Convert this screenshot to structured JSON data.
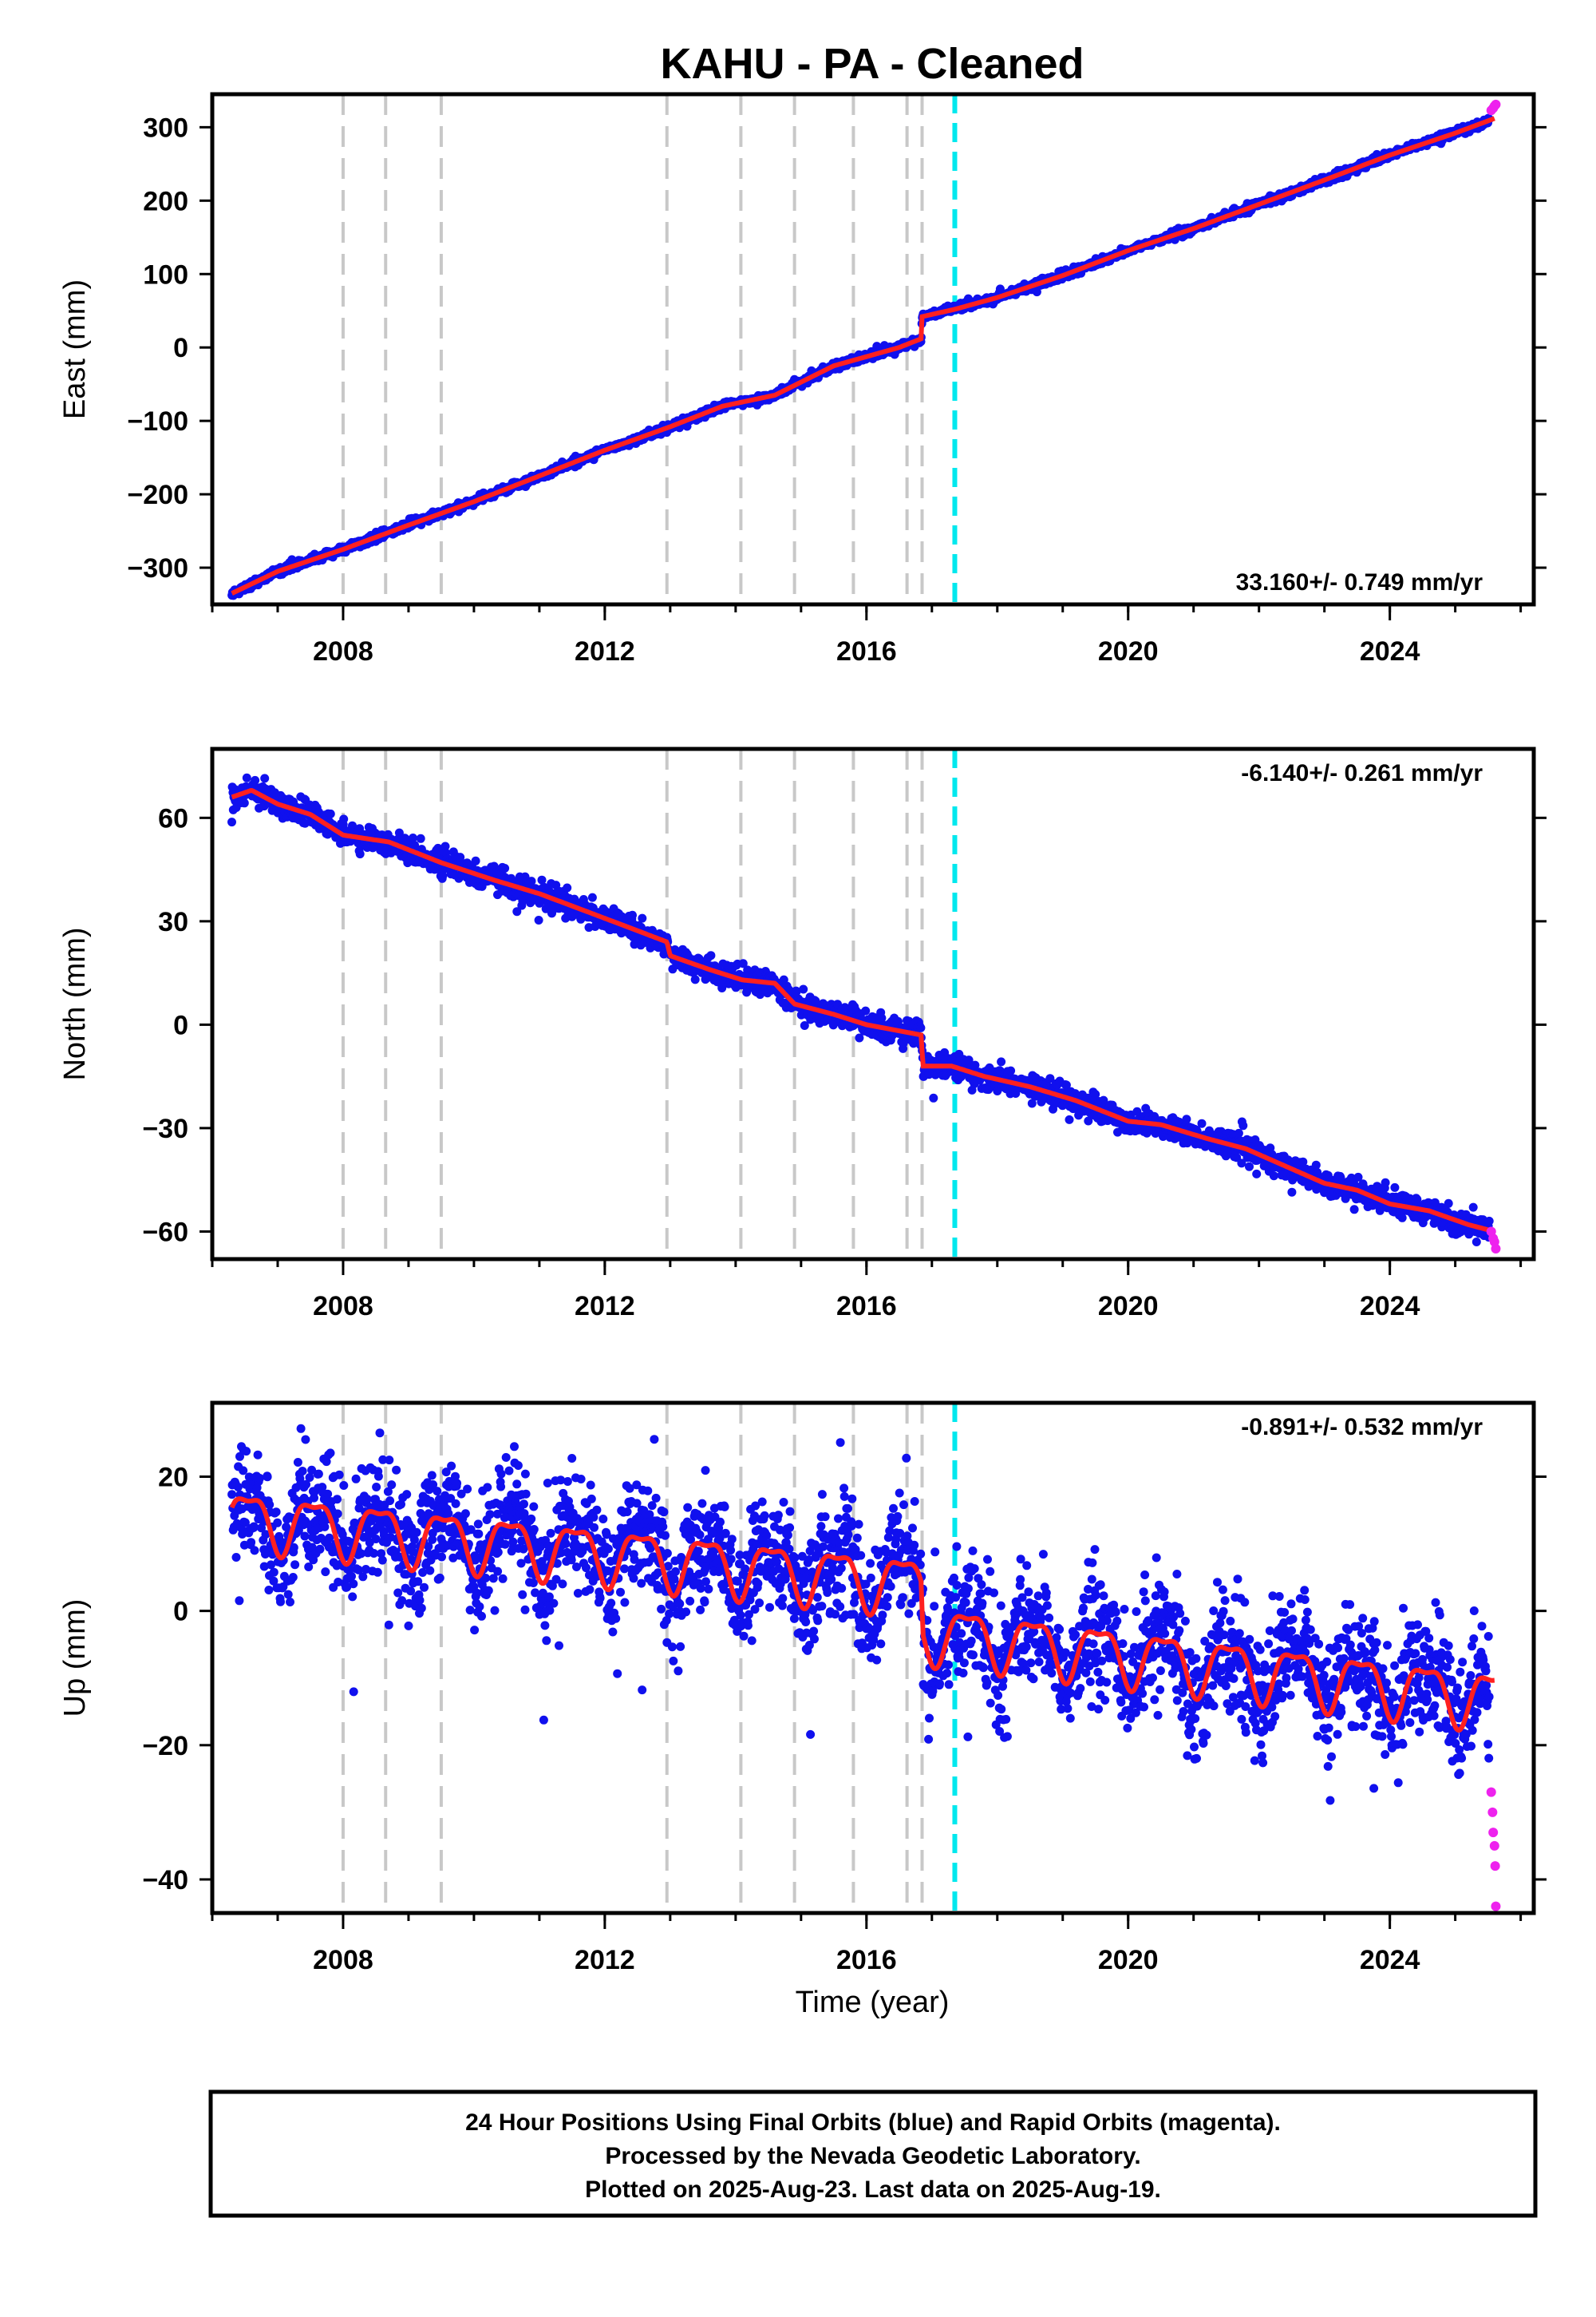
{
  "chart_data": {
    "title": "KAHU  - PA - Cleaned",
    "xlabel": "Time (year)",
    "x_ticks": [
      2008,
      2012,
      2016,
      2020,
      2024
    ],
    "xlim": [
      2006.0,
      2026.2
    ],
    "colors": {
      "final": "#1010ee",
      "rapid": "#ee22ee",
      "fit": "#ff2020",
      "event": "#c8c8c8",
      "equipment_change": "#00e8ee"
    },
    "event_lines": [
      2008.0,
      2008.65,
      2009.5,
      2012.95,
      2014.08,
      2014.9,
      2015.8,
      2016.62,
      2016.85
    ],
    "equipment_change": 2017.35,
    "panels": [
      {
        "type": "scatter",
        "ylabel": "East (mm)",
        "ylim": [
          -350,
          345
        ],
        "y_ticks": [
          -300,
          -200,
          -100,
          0,
          100,
          200,
          300
        ],
        "rate_label": "33.160+/- 0.749 mm/yr",
        "rate_position": "bottom-right",
        "fit": [
          [
            2006.3,
            -335
          ],
          [
            2007,
            -305
          ],
          [
            2008,
            -275
          ],
          [
            2009,
            -242
          ],
          [
            2010,
            -210
          ],
          [
            2011,
            -175
          ],
          [
            2012,
            -140
          ],
          [
            2013,
            -108
          ],
          [
            2013.8,
            -80
          ],
          [
            2014.6,
            -65
          ],
          [
            2015.5,
            -25
          ],
          [
            2016.5,
            0
          ],
          [
            2016.84,
            12
          ],
          [
            2016.85,
            42
          ],
          [
            2017.35,
            52
          ],
          [
            2018,
            68
          ],
          [
            2019,
            98
          ],
          [
            2020,
            132
          ],
          [
            2021,
            162
          ],
          [
            2022,
            195
          ],
          [
            2023,
            228
          ],
          [
            2024,
            262
          ],
          [
            2025,
            292
          ],
          [
            2025.6,
            312
          ]
        ],
        "final_count": 2600,
        "scatter_noise": 2.5,
        "rapid": [
          [
            2025.55,
            323
          ],
          [
            2025.58,
            326
          ],
          [
            2025.6,
            329
          ],
          [
            2025.62,
            331
          ]
        ]
      },
      {
        "type": "scatter",
        "ylabel": "North (mm)",
        "ylim": [
          -68,
          80
        ],
        "y_ticks": [
          -60,
          -30,
          0,
          30,
          60
        ],
        "rate_label": "-6.140+/- 0.261 mm/yr",
        "rate_position": "top-right",
        "fit": [
          [
            2006.3,
            66
          ],
          [
            2006.6,
            68
          ],
          [
            2007,
            64
          ],
          [
            2007.5,
            61
          ],
          [
            2008,
            55
          ],
          [
            2008.7,
            53
          ],
          [
            2009.5,
            47
          ],
          [
            2010.3,
            42
          ],
          [
            2011,
            38
          ],
          [
            2011.7,
            33
          ],
          [
            2012.4,
            28
          ],
          [
            2012.95,
            24
          ],
          [
            2013,
            20
          ],
          [
            2013.6,
            16
          ],
          [
            2014.1,
            13
          ],
          [
            2014.6,
            12
          ],
          [
            2014.9,
            6
          ],
          [
            2015.5,
            3
          ],
          [
            2016,
            0
          ],
          [
            2016.84,
            -3
          ],
          [
            2016.86,
            -12
          ],
          [
            2017.3,
            -12
          ],
          [
            2017.8,
            -15
          ],
          [
            2018.5,
            -18
          ],
          [
            2019.2,
            -22
          ],
          [
            2020,
            -28
          ],
          [
            2020.5,
            -29
          ],
          [
            2021.2,
            -33
          ],
          [
            2021.8,
            -36
          ],
          [
            2022.4,
            -41
          ],
          [
            2023,
            -46
          ],
          [
            2023.5,
            -48
          ],
          [
            2024,
            -52
          ],
          [
            2024.6,
            -54
          ],
          [
            2025.2,
            -58
          ],
          [
            2025.6,
            -60
          ]
        ],
        "final_count": 2600,
        "scatter_noise": 1.7,
        "rapid": [
          [
            2025.55,
            -60
          ],
          [
            2025.58,
            -62
          ],
          [
            2025.6,
            -63
          ],
          [
            2025.62,
            -65
          ]
        ]
      },
      {
        "type": "scatter",
        "ylabel": "Up (mm)",
        "ylim": [
          -45,
          31
        ],
        "y_ticks": [
          -40,
          -20,
          0,
          20
        ],
        "rate_label": "-0.891+/- 0.532 mm/yr",
        "rate_position": "top-right",
        "fit_trend": [
          [
            2006.3,
            14
          ],
          [
            2016.84,
            4
          ],
          [
            2016.86,
            -3
          ],
          [
            2025.6,
            -13
          ]
        ],
        "fit_seasonal_amplitude": 4,
        "final_count": 2900,
        "scatter_noise": 4.2,
        "rapid": [
          [
            2025.55,
            -27
          ],
          [
            2025.57,
            -30
          ],
          [
            2025.58,
            -33
          ],
          [
            2025.6,
            -35
          ],
          [
            2025.61,
            -38
          ],
          [
            2025.62,
            -44
          ]
        ]
      }
    ]
  },
  "footer": {
    "line1": "24 Hour Positions Using Final Orbits (blue) and Rapid Orbits (magenta).",
    "line2": "Processed by the Nevada Geodetic Laboratory.",
    "line3": "Plotted on 2025-Aug-23. Last data on 2025-Aug-19."
  }
}
